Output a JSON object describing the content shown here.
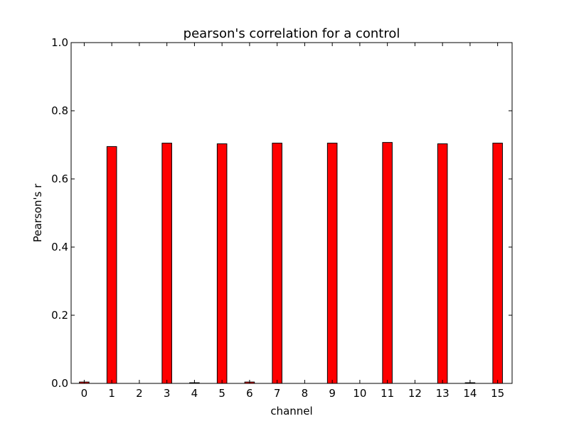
{
  "chart_data": {
    "type": "bar",
    "title": "pearson's correlation for a control",
    "xlabel": "channel",
    "ylabel": "Pearson's r",
    "categories": [
      "0",
      "1",
      "2",
      "3",
      "4",
      "5",
      "6",
      "7",
      "8",
      "9",
      "10",
      "11",
      "12",
      "13",
      "14",
      "15"
    ],
    "values": [
      0.004,
      0.695,
      0.0,
      0.705,
      0.002,
      0.703,
      0.004,
      0.705,
      0.0,
      0.705,
      0.0,
      0.707,
      0.0,
      0.703,
      0.002,
      0.705
    ],
    "ylim": [
      0,
      1.0
    ],
    "yticks": [
      "0.0",
      "0.2",
      "0.4",
      "0.6",
      "0.8",
      "1.0"
    ],
    "grid": false,
    "legend": "none",
    "bar_color": "#ff0000",
    "edge_color": "#000000"
  }
}
